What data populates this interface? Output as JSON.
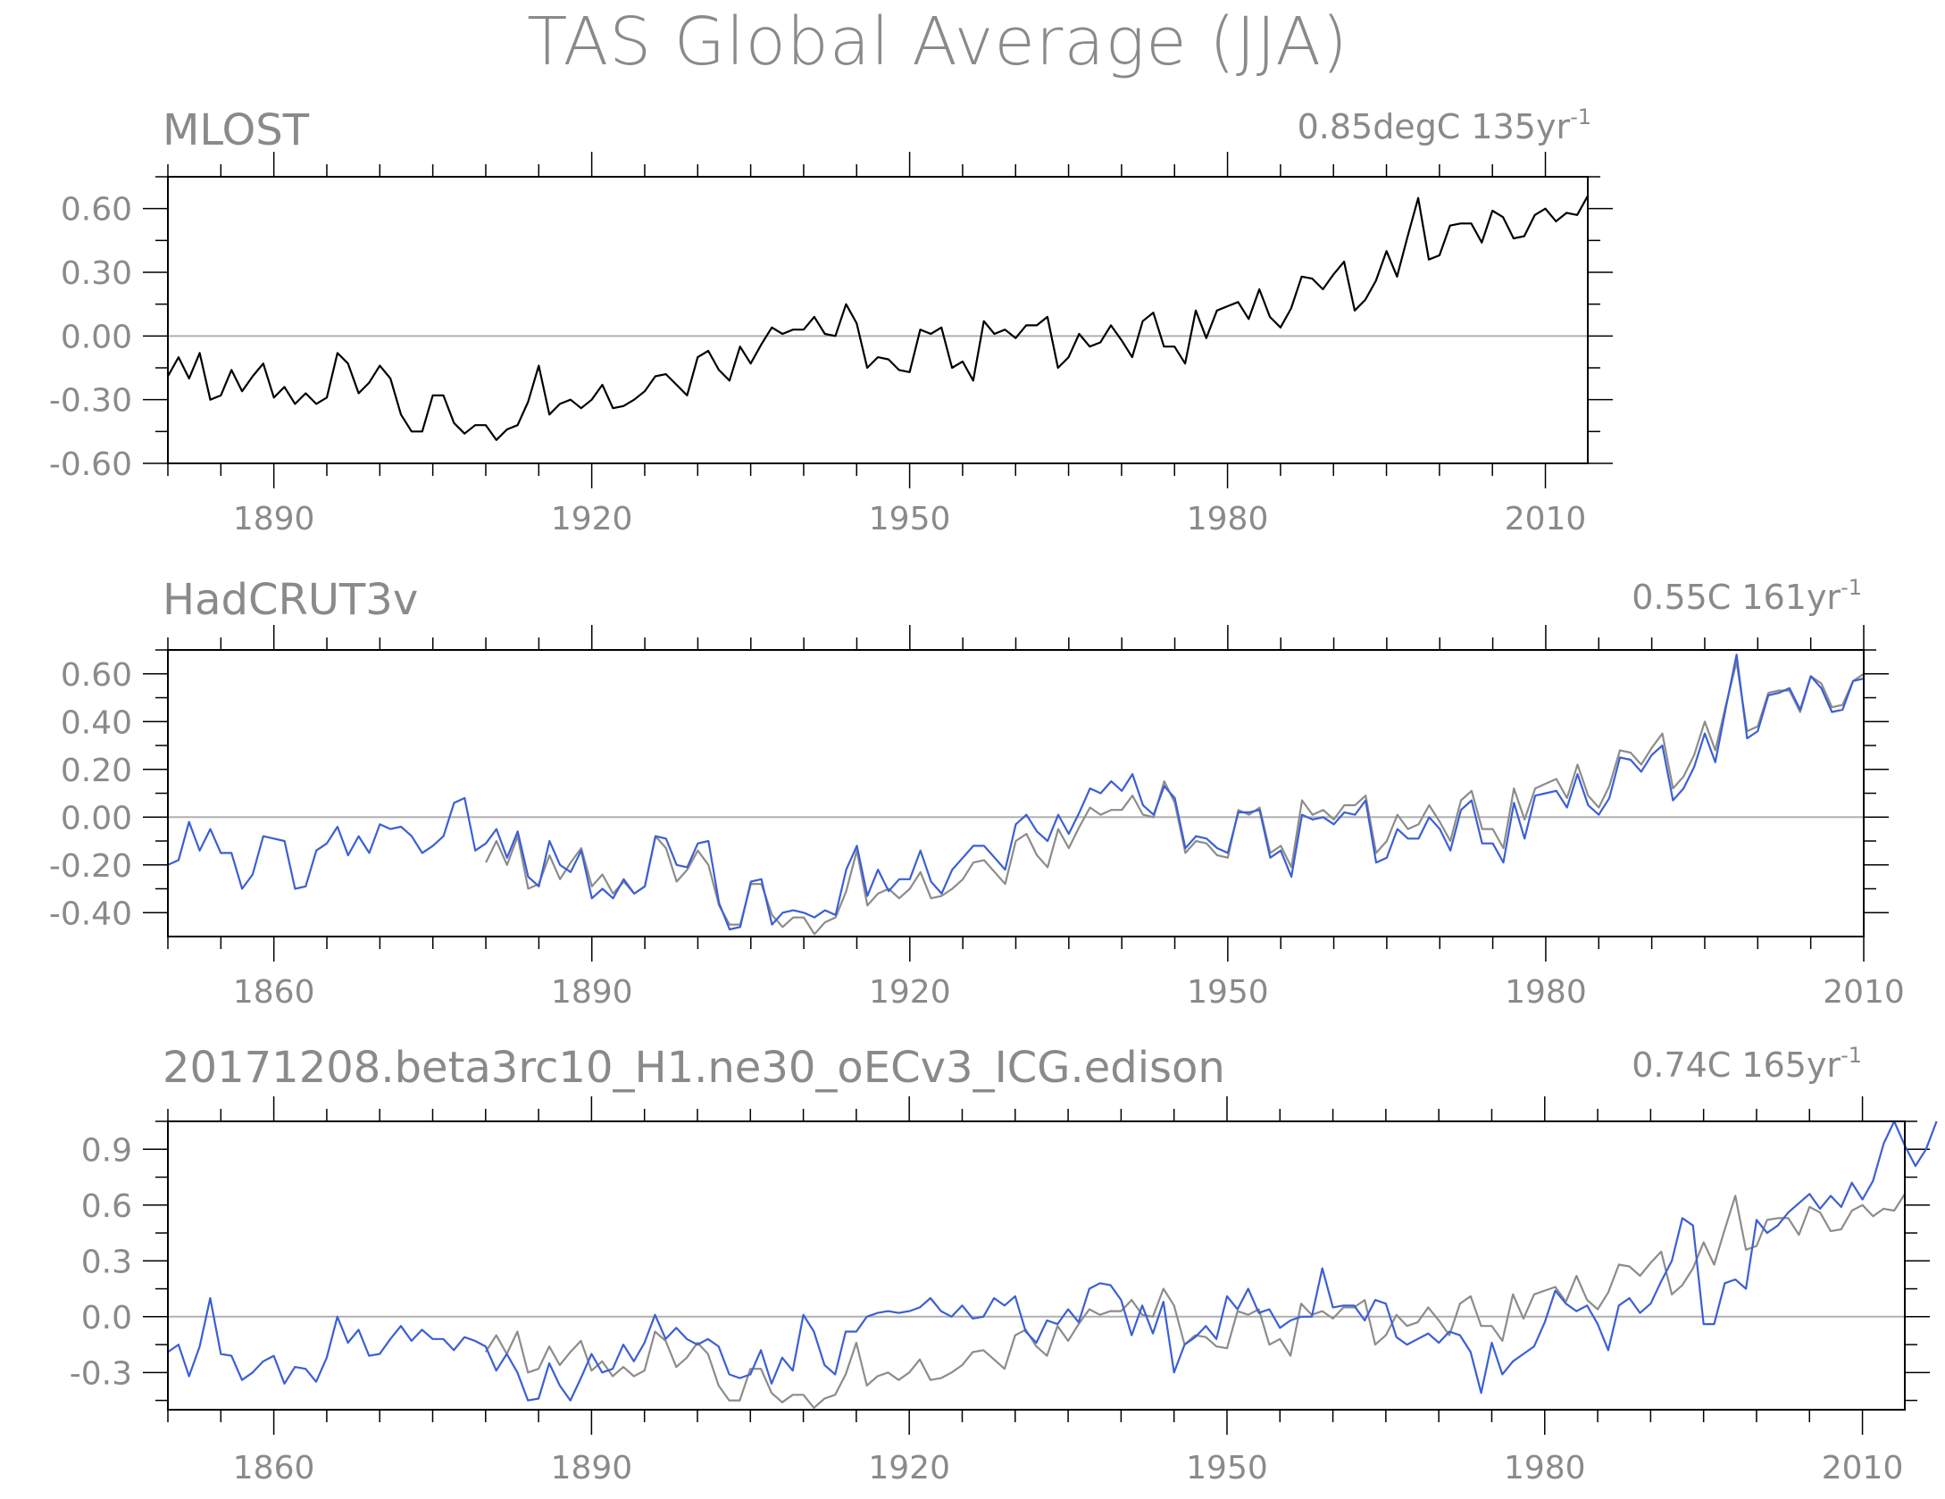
{
  "title": "TAS Global Average (JJA)",
  "colors": {
    "model": "#3b5fd4",
    "obs": "#8c8c8c",
    "mlost": "#000000",
    "axis": "#000000",
    "zero_line": "#b0b0b0",
    "text": "#8a8a8a"
  },
  "panels": [
    {
      "name": "MLOST",
      "trend_text": "0.85degC 135yr",
      "trend_sup": "-1"
    },
    {
      "name": "HadCRUT3v",
      "trend_text": "0.55C 161yr",
      "trend_sup": "-1"
    },
    {
      "name": "20171208.beta3rc10_H1.ne30_oECv3_ICG.edison",
      "trend_text": "0.74C 165yr",
      "trend_sup": "-1"
    }
  ],
  "chart_data": [
    {
      "type": "line",
      "title": "MLOST",
      "xlim": [
        1880,
        2014
      ],
      "ylim": [
        -0.6,
        0.75
      ],
      "x_ticks": [
        1890,
        1920,
        1950,
        1980,
        2010
      ],
      "x_tick_labels": [
        "1890",
        "1920",
        "1950",
        "1980",
        "2010"
      ],
      "y_ticks": [
        -0.6,
        -0.3,
        0.0,
        0.3,
        0.6
      ],
      "y_tick_labels": [
        "-0.60",
        "-0.30",
        "0.00",
        "0.30",
        "0.60"
      ],
      "zero_line": true,
      "series": [
        {
          "color": "#000000",
          "x_start": 1880,
          "values": [
            -0.19,
            -0.1,
            -0.2,
            -0.08,
            -0.3,
            -0.28,
            -0.16,
            -0.26,
            -0.19,
            -0.13,
            -0.29,
            -0.24,
            -0.32,
            -0.27,
            -0.32,
            -0.29,
            -0.08,
            -0.13,
            -0.27,
            -0.22,
            -0.14,
            -0.2,
            -0.37,
            -0.45,
            -0.45,
            -0.28,
            -0.28,
            -0.41,
            -0.46,
            -0.42,
            -0.42,
            -0.49,
            -0.44,
            -0.42,
            -0.31,
            -0.14,
            -0.37,
            -0.32,
            -0.3,
            -0.34,
            -0.3,
            -0.23,
            -0.34,
            -0.33,
            -0.3,
            -0.26,
            -0.19,
            -0.18,
            -0.23,
            -0.28,
            -0.1,
            -0.07,
            -0.16,
            -0.21,
            -0.05,
            -0.13,
            -0.04,
            0.04,
            0.01,
            0.03,
            0.03,
            0.09,
            0.01,
            0.0,
            0.15,
            0.06,
            -0.15,
            -0.1,
            -0.11,
            -0.16,
            -0.17,
            0.03,
            0.01,
            0.04,
            -0.15,
            -0.12,
            -0.21,
            0.07,
            0.01,
            0.03,
            -0.01,
            0.05,
            0.05,
            0.09,
            -0.15,
            -0.1,
            0.01,
            -0.05,
            -0.03,
            0.05,
            -0.02,
            -0.1,
            0.07,
            0.11,
            -0.05,
            -0.05,
            -0.13,
            0.12,
            -0.01,
            0.12,
            0.14,
            0.16,
            0.08,
            0.22,
            0.09,
            0.04,
            0.13,
            0.28,
            0.27,
            0.22,
            0.29,
            0.35,
            0.12,
            0.17,
            0.26,
            0.4,
            0.28,
            0.47,
            0.65,
            0.36,
            0.38,
            0.52,
            0.53,
            0.53,
            0.44,
            0.59,
            0.56,
            0.46,
            0.47,
            0.57,
            0.6,
            0.54,
            0.58,
            0.57,
            0.66
          ]
        }
      ]
    },
    {
      "type": "line",
      "title": "HadCRUT3v",
      "xlim": [
        1850,
        2010
      ],
      "ylim": [
        -0.5,
        0.7
      ],
      "x_ticks": [
        1860,
        1890,
        1920,
        1950,
        1980,
        2010
      ],
      "x_tick_labels": [
        "1860",
        "1890",
        "1920",
        "1950",
        "1980",
        "2010"
      ],
      "y_ticks": [
        -0.4,
        -0.2,
        0.0,
        0.2,
        0.4,
        0.6
      ],
      "y_tick_labels": [
        "-0.40",
        "-0.20",
        "0.00",
        "0.20",
        "0.40",
        "0.60"
      ],
      "zero_line": true,
      "series": [
        {
          "color": "#8c8c8c",
          "x_start": 1880,
          "values": [
            -0.19,
            -0.1,
            -0.2,
            -0.08,
            -0.3,
            -0.28,
            -0.16,
            -0.26,
            -0.19,
            -0.13,
            -0.29,
            -0.24,
            -0.32,
            -0.27,
            -0.32,
            -0.29,
            -0.08,
            -0.13,
            -0.27,
            -0.22,
            -0.14,
            -0.2,
            -0.37,
            -0.45,
            -0.45,
            -0.28,
            -0.28,
            -0.41,
            -0.46,
            -0.42,
            -0.42,
            -0.49,
            -0.44,
            -0.42,
            -0.31,
            -0.14,
            -0.37,
            -0.32,
            -0.3,
            -0.34,
            -0.3,
            -0.23,
            -0.34,
            -0.33,
            -0.3,
            -0.26,
            -0.19,
            -0.18,
            -0.23,
            -0.28,
            -0.1,
            -0.07,
            -0.16,
            -0.21,
            -0.05,
            -0.13,
            -0.04,
            0.04,
            0.01,
            0.03,
            0.03,
            0.09,
            0.01,
            0.0,
            0.15,
            0.06,
            -0.15,
            -0.1,
            -0.11,
            -0.16,
            -0.17,
            0.03,
            0.01,
            0.04,
            -0.15,
            -0.12,
            -0.21,
            0.07,
            0.01,
            0.03,
            -0.01,
            0.05,
            0.05,
            0.09,
            -0.15,
            -0.1,
            0.01,
            -0.05,
            -0.03,
            0.05,
            -0.02,
            -0.1,
            0.07,
            0.11,
            -0.05,
            -0.05,
            -0.13,
            0.12,
            -0.01,
            0.12,
            0.14,
            0.16,
            0.08,
            0.22,
            0.09,
            0.04,
            0.13,
            0.28,
            0.27,
            0.22,
            0.29,
            0.35,
            0.12,
            0.17,
            0.26,
            0.4,
            0.28,
            0.47,
            0.65,
            0.36,
            0.38,
            0.52,
            0.53,
            0.53,
            0.44,
            0.59,
            0.56,
            0.46,
            0.47,
            0.57,
            0.6
          ]
        },
        {
          "color": "#3b5fd4",
          "x_start": 1850,
          "values": [
            -0.2,
            -0.18,
            -0.02,
            -0.14,
            -0.05,
            -0.15,
            -0.15,
            -0.3,
            -0.24,
            -0.08,
            -0.09,
            -0.1,
            -0.3,
            -0.29,
            -0.14,
            -0.11,
            -0.04,
            -0.16,
            -0.08,
            -0.15,
            -0.03,
            -0.05,
            -0.04,
            -0.08,
            -0.15,
            -0.12,
            -0.08,
            0.06,
            0.08,
            -0.14,
            -0.11,
            -0.05,
            -0.17,
            -0.06,
            -0.25,
            -0.29,
            -0.1,
            -0.2,
            -0.23,
            -0.14,
            -0.34,
            -0.3,
            -0.34,
            -0.26,
            -0.32,
            -0.29,
            -0.08,
            -0.09,
            -0.2,
            -0.21,
            -0.11,
            -0.1,
            -0.36,
            -0.47,
            -0.46,
            -0.27,
            -0.26,
            -0.45,
            -0.4,
            -0.39,
            -0.4,
            -0.42,
            -0.39,
            -0.41,
            -0.22,
            -0.12,
            -0.33,
            -0.22,
            -0.31,
            -0.26,
            -0.26,
            -0.14,
            -0.27,
            -0.32,
            -0.22,
            -0.17,
            -0.12,
            -0.12,
            -0.17,
            -0.22,
            -0.03,
            0.01,
            -0.06,
            -0.1,
            0.01,
            -0.07,
            0.02,
            0.12,
            0.1,
            0.15,
            0.11,
            0.18,
            0.05,
            0.01,
            0.13,
            0.08,
            -0.13,
            -0.08,
            -0.09,
            -0.13,
            -0.15,
            0.02,
            0.02,
            0.03,
            -0.17,
            -0.14,
            -0.25,
            0.01,
            -0.01,
            0.0,
            -0.03,
            0.02,
            0.01,
            0.07,
            -0.19,
            -0.17,
            -0.05,
            -0.09,
            -0.09,
            0.0,
            -0.05,
            -0.14,
            0.03,
            0.07,
            -0.11,
            -0.11,
            -0.19,
            0.06,
            -0.09,
            0.09,
            0.1,
            0.11,
            0.04,
            0.18,
            0.05,
            0.01,
            0.08,
            0.25,
            0.24,
            0.19,
            0.26,
            0.3,
            0.07,
            0.12,
            0.21,
            0.35,
            0.23,
            0.46,
            0.68,
            0.33,
            0.36,
            0.51,
            0.52,
            0.54,
            0.45,
            0.59,
            0.54,
            0.44,
            0.45,
            0.57,
            0.58
          ]
        }
      ]
    },
    {
      "type": "line",
      "title": "20171208.beta3rc10_H1.ne30_oECv3_ICG.edison",
      "xlim": [
        1850,
        2014
      ],
      "ylim": [
        -0.5,
        1.05
      ],
      "x_ticks": [
        1860,
        1890,
        1920,
        1950,
        1980,
        2010
      ],
      "x_tick_labels": [
        "1860",
        "1890",
        "1920",
        "1950",
        "1980",
        "2010"
      ],
      "y_ticks": [
        -0.3,
        0.0,
        0.3,
        0.6,
        0.9
      ],
      "y_tick_labels": [
        "-0.3",
        "0.0",
        "0.3",
        "0.6",
        "0.9"
      ],
      "zero_line": true,
      "series": [
        {
          "color": "#8c8c8c",
          "x_start": 1880,
          "values": [
            -0.19,
            -0.1,
            -0.2,
            -0.08,
            -0.3,
            -0.28,
            -0.16,
            -0.26,
            -0.19,
            -0.13,
            -0.29,
            -0.24,
            -0.32,
            -0.27,
            -0.32,
            -0.29,
            -0.08,
            -0.13,
            -0.27,
            -0.22,
            -0.14,
            -0.2,
            -0.37,
            -0.45,
            -0.45,
            -0.28,
            -0.28,
            -0.41,
            -0.46,
            -0.42,
            -0.42,
            -0.49,
            -0.44,
            -0.42,
            -0.31,
            -0.14,
            -0.37,
            -0.32,
            -0.3,
            -0.34,
            -0.3,
            -0.23,
            -0.34,
            -0.33,
            -0.3,
            -0.26,
            -0.19,
            -0.18,
            -0.23,
            -0.28,
            -0.1,
            -0.07,
            -0.16,
            -0.21,
            -0.05,
            -0.13,
            -0.04,
            0.04,
            0.01,
            0.03,
            0.03,
            0.09,
            0.01,
            0.0,
            0.15,
            0.06,
            -0.15,
            -0.1,
            -0.11,
            -0.16,
            -0.17,
            0.03,
            0.01,
            0.04,
            -0.15,
            -0.12,
            -0.21,
            0.07,
            0.01,
            0.03,
            -0.01,
            0.05,
            0.05,
            0.09,
            -0.15,
            -0.1,
            0.01,
            -0.05,
            -0.03,
            0.05,
            -0.02,
            -0.1,
            0.07,
            0.11,
            -0.05,
            -0.05,
            -0.13,
            0.12,
            -0.01,
            0.12,
            0.14,
            0.16,
            0.08,
            0.22,
            0.09,
            0.04,
            0.13,
            0.28,
            0.27,
            0.22,
            0.29,
            0.35,
            0.12,
            0.17,
            0.26,
            0.4,
            0.28,
            0.47,
            0.65,
            0.36,
            0.38,
            0.52,
            0.53,
            0.53,
            0.44,
            0.59,
            0.56,
            0.46,
            0.47,
            0.57,
            0.6,
            0.54,
            0.58,
            0.57,
            0.66
          ]
        },
        {
          "color": "#3b5fd4",
          "x_start": 1850,
          "values": [
            -0.19,
            -0.15,
            -0.32,
            -0.16,
            0.1,
            -0.2,
            -0.21,
            -0.34,
            -0.3,
            -0.24,
            -0.21,
            -0.36,
            -0.27,
            -0.28,
            -0.35,
            -0.22,
            0.0,
            -0.14,
            -0.07,
            -0.21,
            -0.2,
            -0.12,
            -0.05,
            -0.13,
            -0.07,
            -0.12,
            -0.12,
            -0.18,
            -0.11,
            -0.13,
            -0.16,
            -0.29,
            -0.2,
            -0.3,
            -0.45,
            -0.44,
            -0.25,
            -0.37,
            -0.45,
            -0.33,
            -0.2,
            -0.3,
            -0.28,
            -0.15,
            -0.24,
            -0.14,
            0.01,
            -0.12,
            -0.06,
            -0.12,
            -0.15,
            -0.12,
            -0.16,
            -0.31,
            -0.33,
            -0.31,
            -0.18,
            -0.36,
            -0.22,
            -0.29,
            0.01,
            -0.08,
            -0.26,
            -0.31,
            -0.08,
            -0.08,
            0.0,
            0.02,
            0.03,
            0.02,
            0.03,
            0.05,
            0.1,
            0.03,
            0.0,
            0.06,
            -0.01,
            0.0,
            0.1,
            0.06,
            0.11,
            -0.08,
            -0.14,
            -0.02,
            -0.04,
            0.04,
            -0.03,
            0.15,
            0.18,
            0.17,
            0.09,
            -0.1,
            0.06,
            -0.09,
            0.08,
            -0.3,
            -0.15,
            -0.11,
            -0.05,
            -0.12,
            0.11,
            0.04,
            0.15,
            0.02,
            0.04,
            -0.06,
            -0.02,
            0.0,
            0.0,
            0.26,
            0.05,
            0.06,
            0.06,
            -0.02,
            0.09,
            0.07,
            -0.11,
            -0.15,
            -0.12,
            -0.09,
            -0.14,
            -0.08,
            -0.1,
            -0.19,
            -0.41,
            -0.14,
            -0.31,
            -0.24,
            -0.2,
            -0.16,
            -0.03,
            0.14,
            0.07,
            0.03,
            0.06,
            -0.04,
            -0.18,
            0.06,
            0.1,
            0.02,
            0.07,
            0.19,
            0.3,
            0.53,
            0.49,
            -0.04,
            -0.04,
            0.18,
            0.2,
            0.15,
            0.52,
            0.45,
            0.49,
            0.56,
            0.61,
            0.66,
            0.58,
            0.65,
            0.59,
            0.72,
            0.63,
            0.73,
            0.93,
            1.05,
            0.92,
            0.81,
            0.9,
            1.05
          ]
        }
      ]
    }
  ]
}
